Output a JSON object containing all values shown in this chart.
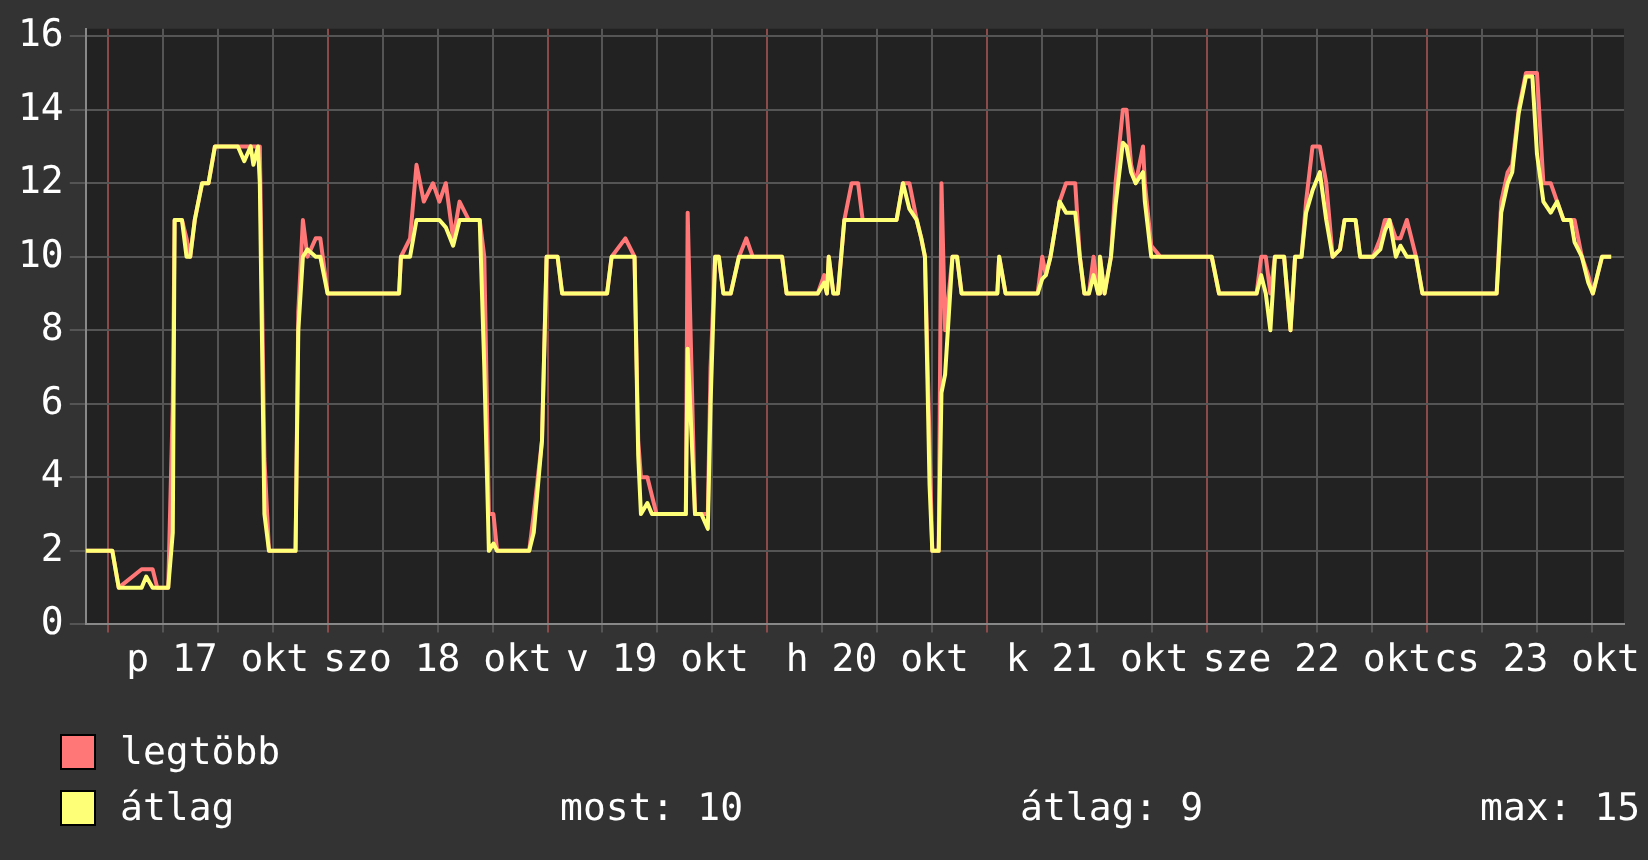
{
  "chart_data": {
    "type": "line",
    "x": [
      "--10-16T21:36",
      "--10-17T00:30",
      "--10-17T01:12",
      "--10-17T03:42",
      "--10-17T04:12",
      "--10-17T04:54",
      "--10-17T05:24",
      "--10-17T06:36",
      "--10-17T07:06",
      "--10-17T07:18",
      "--10-17T08:06",
      "--10-17T08:36",
      "--10-17T09:00",
      "--10-17T09:30",
      "--10-17T10:18",
      "--10-17T11:00",
      "--10-17T11:42",
      "--10-17T14:12",
      "--10-17T14:54",
      "--10-17T15:36",
      "--10-17T15:54",
      "--10-17T16:24",
      "--10-17T16:36",
      "--10-17T17:06",
      "--10-17T17:36",
      "--10-17T20:30",
      "--10-17T20:48",
      "--10-17T21:18",
      "--10-17T21:48",
      "--10-17T22:42",
      "--10-17T23:12",
      "--10-18T00:00",
      "--10-18T07:48",
      "--10-18T08:00",
      "--10-18T09:00",
      "--10-18T09:42",
      "--10-18T10:30",
      "--10-18T11:30",
      "--10-18T12:12",
      "--10-18T12:54",
      "--10-18T13:42",
      "--10-18T14:24",
      "--10-18T15:24",
      "--10-18T16:36",
      "--10-18T17:06",
      "--10-18T17:36",
      "--10-18T18:06",
      "--10-18T18:30",
      "--10-18T22:00",
      "--10-18T22:30",
      "--10-18T23:24",
      "--10-18T23:54",
      "--10-19T01:06",
      "--10-19T01:36",
      "--10-19T06:30",
      "--10-19T07:00",
      "--10-19T08:30",
      "--10-19T09:30",
      "--10-19T09:54",
      "--10-19T10:12",
      "--10-19T10:54",
      "--10-19T11:24",
      "--10-19T11:54",
      "--10-19T15:06",
      "--10-19T15:18",
      "--10-19T16:06",
      "--10-19T16:48",
      "--10-19T17:30",
      "--10-19T17:48",
      "--10-19T18:18",
      "--10-19T18:42",
      "--10-19T19:12",
      "--10-19T20:00",
      "--10-19T20:54",
      "--10-19T21:42",
      "--10-19T22:24",
      "--10-20T01:36",
      "--10-20T02:06",
      "--10-20T05:30",
      "--10-20T06:12",
      "--10-20T06:30",
      "--10-20T06:42",
      "--10-20T07:12",
      "--10-20T07:42",
      "--10-20T08:24",
      "--10-20T09:12",
      "--10-20T09:54",
      "--10-20T10:24",
      "--10-20T14:06",
      "--10-20T14:48",
      "--10-20T15:30",
      "--10-20T16:18",
      "--10-20T16:48",
      "--10-20T17:12",
      "--10-20T17:42",
      "--10-20T18:00",
      "--10-20T18:42",
      "--10-20T19:00",
      "--10-20T19:24",
      "--10-20T20:12",
      "--10-20T20:42",
      "--10-20T21:12",
      "--10-21T01:06",
      "--10-21T01:18",
      "--10-21T02:00",
      "--10-21T05:30",
      "--10-21T06:00",
      "--10-21T06:24",
      "--10-21T06:54",
      "--10-21T07:54",
      "--10-21T08:36",
      "--10-21T09:36",
      "--10-21T10:06",
      "--10-21T10:36",
      "--10-21T11:06",
      "--10-21T11:36",
      "--10-21T12:06",
      "--10-21T12:18",
      "--10-21T12:48",
      "--10-21T13:30",
      "--10-21T14:00",
      "--10-21T14:48",
      "--10-21T15:12",
      "--10-21T15:42",
      "--10-21T16:12",
      "--10-21T17:00",
      "--10-21T17:12",
      "--10-21T17:54",
      "--10-21T18:54",
      "--10-22T00:30",
      "--10-22T01:18",
      "--10-22T05:24",
      "--10-22T05:54",
      "--10-22T06:24",
      "--10-22T06:54",
      "--10-22T07:24",
      "--10-22T08:24",
      "--10-22T09:06",
      "--10-22T09:36",
      "--10-22T10:18",
      "--10-22T10:48",
      "--10-22T11:30",
      "--10-22T12:18",
      "--10-22T13:00",
      "--10-22T13:42",
      "--10-22T14:30",
      "--10-22T15:00",
      "--10-22T16:12",
      "--10-22T16:42",
      "--10-22T18:06",
      "--10-22T18:54",
      "--10-22T19:24",
      "--10-22T19:54",
      "--10-22T20:36",
      "--10-22T21:06",
      "--10-22T21:48",
      "--10-22T22:48",
      "--10-22T23:30",
      "--10-23T07:36",
      "--10-23T08:06",
      "--10-23T08:48",
      "--10-23T09:18",
      "--10-23T10:00",
      "--10-23T10:48",
      "--10-23T11:30",
      "--10-23T12:00",
      "--10-23T12:42",
      "--10-23T13:30",
      "--10-23T14:12",
      "--10-23T14:54",
      "--10-23T15:42",
      "--10-23T16:06",
      "--10-23T16:54",
      "--10-23T17:36",
      "--10-23T18:06",
      "--10-23T18:36",
      "--10-23T19:06",
      "--10-23T20:06"
    ],
    "series": [
      {
        "name": "legtöbb",
        "color": "#ff7777",
        "values": [
          2,
          2,
          1,
          1.5,
          1.5,
          1.5,
          1,
          1,
          6,
          11,
          11,
          10.5,
          10,
          11,
          12,
          12,
          13,
          13,
          13,
          13,
          13,
          13,
          13,
          4.5,
          2,
          2,
          8.5,
          11,
          10,
          10.5,
          10.5,
          9,
          9,
          10,
          10.5,
          12.5,
          11.5,
          12,
          11.5,
          12,
          10.5,
          11.5,
          11,
          11,
          10,
          3,
          3,
          2,
          2,
          3,
          5,
          10,
          10,
          9,
          9,
          10,
          10.5,
          10,
          5,
          4,
          4,
          3.5,
          3,
          3,
          11.2,
          3,
          3,
          3,
          7,
          10,
          10,
          9,
          9,
          10,
          10.5,
          10,
          10,
          9,
          9,
          9.5,
          9,
          10,
          9,
          9,
          11,
          12,
          12,
          11,
          11,
          12,
          12,
          11,
          10.5,
          10,
          5,
          2,
          2,
          12,
          8,
          10,
          10,
          9,
          9,
          10,
          9,
          9,
          10,
          9.5,
          10,
          11.5,
          12,
          12,
          10,
          9,
          9,
          10,
          9,
          10,
          9,
          10,
          12,
          14,
          14,
          12.5,
          12,
          13,
          12,
          10.3,
          10,
          10,
          9,
          9,
          10,
          10,
          9,
          10,
          10,
          8,
          10,
          10,
          11.5,
          13,
          13,
          12,
          10,
          10.2,
          11,
          11,
          10,
          10,
          10.5,
          11,
          11,
          10.5,
          10.5,
          11,
          10,
          9,
          9,
          11.5,
          12.3,
          12.5,
          14,
          15,
          15,
          15,
          12,
          12,
          11.5,
          11,
          11,
          11,
          10,
          9.5,
          9,
          9.5,
          10,
          10
        ]
      },
      {
        "name": "átlag",
        "color": "#ffff77",
        "values": [
          2,
          2,
          1,
          1,
          1.3,
          1,
          1,
          1,
          2.5,
          11,
          11,
          10,
          10,
          11,
          12,
          12,
          13,
          13,
          12.6,
          13,
          12.5,
          13,
          12,
          3,
          2,
          2,
          8,
          10,
          10.2,
          10,
          10,
          9,
          9,
          10,
          10,
          11,
          11,
          11,
          11,
          10.8,
          10.3,
          11,
          11,
          11,
          7,
          2,
          2.2,
          2,
          2,
          2.5,
          5,
          10,
          10,
          9,
          9,
          10,
          10,
          10,
          4.6,
          3,
          3.3,
          3,
          3,
          3,
          7.5,
          3,
          3,
          2.6,
          6,
          10,
          10,
          9,
          9,
          10,
          10,
          10,
          10,
          9,
          9,
          9.3,
          9,
          10,
          9,
          9,
          11,
          11,
          11,
          11,
          11,
          12,
          11.3,
          11,
          10.5,
          10,
          3.8,
          2,
          2,
          6.3,
          6.8,
          10,
          10,
          9,
          9,
          10,
          9,
          9,
          9.4,
          9.5,
          10,
          11.5,
          11.2,
          11.2,
          10,
          9,
          9,
          9.5,
          9,
          10,
          9,
          10,
          11.4,
          13.1,
          13,
          12.3,
          12,
          12.3,
          11.5,
          10,
          10,
          10,
          9,
          9,
          9.5,
          9,
          8,
          10,
          10,
          8,
          10,
          10,
          11.2,
          11.8,
          12.3,
          11,
          10,
          10.2,
          11,
          11,
          10,
          10,
          10.2,
          10.7,
          11,
          10,
          10.3,
          10,
          10,
          9,
          9,
          11.2,
          12,
          12.3,
          13.9,
          14.9,
          14.9,
          12.8,
          11.5,
          11.2,
          11.5,
          11,
          11,
          10.4,
          10,
          9.3,
          9,
          9.5,
          10,
          10
        ]
      }
    ],
    "xlim": [
      "--10-16T21:36",
      "--10-23T21:30"
    ],
    "xticks": [
      {
        "value": "--10-17T00:00",
        "label": null
      },
      {
        "value": "--10-17T06:00",
        "label": null
      },
      {
        "value": "--10-17T12:00",
        "label": "p 17 okt"
      },
      {
        "value": "--10-17T18:00",
        "label": null
      },
      {
        "value": "--10-18T00:00",
        "label": null
      },
      {
        "value": "--10-18T06:00",
        "label": null
      },
      {
        "value": "--10-18T12:00",
        "label": "szo 18 okt"
      },
      {
        "value": "--10-18T18:00",
        "label": null
      },
      {
        "value": "--10-19T00:00",
        "label": null
      },
      {
        "value": "--10-19T06:00",
        "label": null
      },
      {
        "value": "--10-19T12:00",
        "label": "v 19 okt"
      },
      {
        "value": "--10-19T18:00",
        "label": null
      },
      {
        "value": "--10-20T00:00",
        "label": null
      },
      {
        "value": "--10-20T06:00",
        "label": null
      },
      {
        "value": "--10-20T12:00",
        "label": "h 20 okt"
      },
      {
        "value": "--10-20T18:00",
        "label": null
      },
      {
        "value": "--10-21T00:00",
        "label": null
      },
      {
        "value": "--10-21T06:00",
        "label": null
      },
      {
        "value": "--10-21T12:00",
        "label": "k 21 okt"
      },
      {
        "value": "--10-21T18:00",
        "label": null
      },
      {
        "value": "--10-22T00:00",
        "label": null
      },
      {
        "value": "--10-22T06:00",
        "label": null
      },
      {
        "value": "--10-22T12:00",
        "label": "sze 22 okt"
      },
      {
        "value": "--10-22T18:00",
        "label": null
      },
      {
        "value": "--10-23T00:00",
        "label": null
      },
      {
        "value": "--10-23T06:00",
        "label": null
      },
      {
        "value": "--10-23T12:00",
        "label": "cs 23 okt"
      },
      {
        "value": "--10-23T18:00",
        "label": null
      }
    ],
    "ylim": [
      0,
      16.2
    ],
    "yticks": [
      0,
      2,
      4,
      6,
      8,
      10,
      12,
      14,
      16
    ],
    "grid": true,
    "legend": "bottom",
    "line_style": "solid",
    "marker": "none",
    "annotations": [
      "most: 10",
      "átlag: 9",
      "max: 15"
    ]
  }
}
